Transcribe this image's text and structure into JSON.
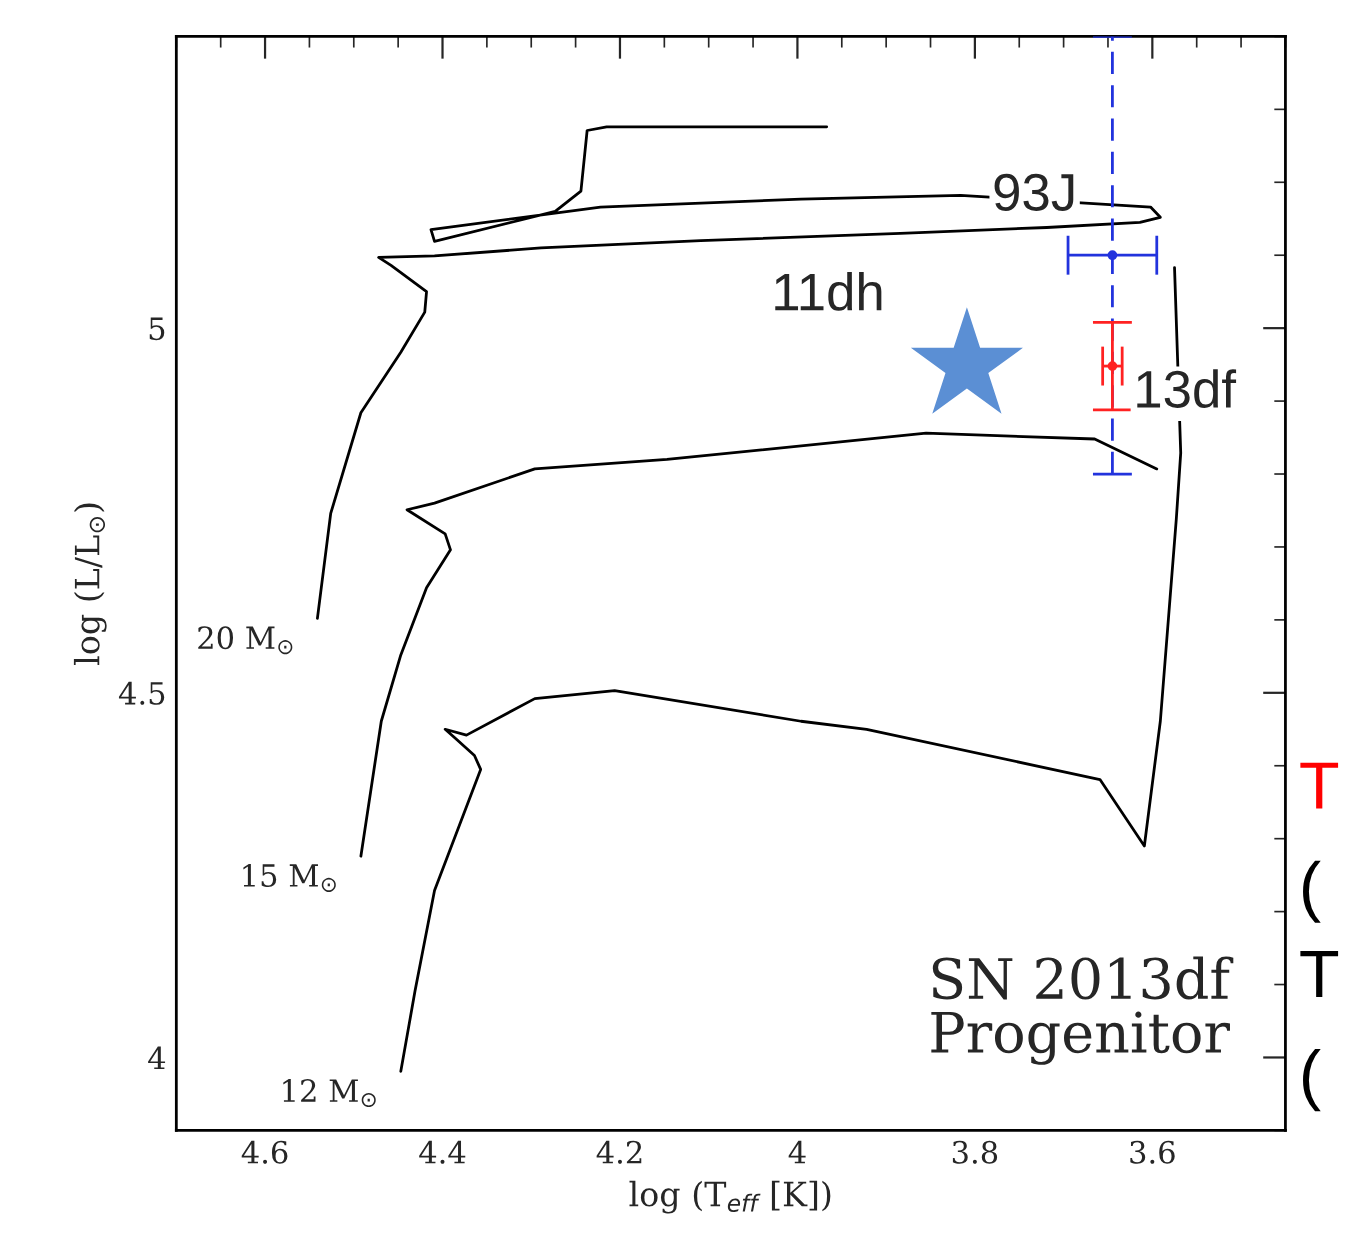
{
  "chart_data": {
    "type": "line",
    "xlabel": "log (T$_{eff}$ [K])",
    "ylabel": "log (L/L$_{⊙}$)",
    "xlim": [
      4.7,
      3.45
    ],
    "xticks": [
      4.6,
      4.4,
      4.2,
      4,
      3.8,
      3.6
    ],
    "ylim": [
      3.9,
      5.4
    ],
    "yticks": [
      4,
      4.5,
      5
    ],
    "grid": false,
    "legend": false,
    "series": [
      {
        "name": "20 M$_{⊙}$",
        "color": "#000000",
        "marker": "none",
        "x": [
          4.541,
          4.526,
          4.492,
          4.447,
          4.42,
          4.418,
          4.458,
          4.472,
          4.409,
          4.289,
          4.109,
          3.884,
          3.719,
          3.614,
          3.591,
          3.602,
          3.816,
          3.996,
          4.222,
          4.413,
          4.409,
          4.273,
          4.244,
          4.237,
          4.215,
          3.967
        ],
        "values": [
          4.602,
          4.746,
          4.884,
          4.967,
          5.022,
          5.05,
          5.086,
          5.097,
          5.099,
          5.11,
          5.12,
          5.13,
          5.138,
          5.145,
          5.152,
          5.166,
          5.182,
          5.177,
          5.166,
          5.135,
          5.119,
          5.16,
          5.188,
          5.271,
          5.276,
          5.276
        ]
      },
      {
        "name": "15 M$_{⊙}$",
        "color": "#000000",
        "marker": "none",
        "x": [
          4.492,
          4.469,
          4.447,
          4.418,
          4.391,
          4.397,
          4.44,
          4.409,
          4.296,
          4.147,
          3.855,
          3.665,
          3.595
        ],
        "values": [
          4.276,
          4.461,
          4.552,
          4.644,
          4.696,
          4.718,
          4.751,
          4.76,
          4.807,
          4.82,
          4.856,
          4.848,
          4.807
        ]
      },
      {
        "name": "12 M$_{⊙}$",
        "color": "#000000",
        "marker": "none",
        "x": [
          4.447,
          4.431,
          4.409,
          4.357,
          4.364,
          4.384,
          4.397,
          4.373,
          4.296,
          4.206,
          3.996,
          3.922,
          3.659,
          3.609,
          3.591,
          3.573,
          3.568,
          3.575
        ],
        "values": [
          3.981,
          4.091,
          4.229,
          4.395,
          4.414,
          4.436,
          4.45,
          4.442,
          4.492,
          4.503,
          4.461,
          4.45,
          4.381,
          4.29,
          4.461,
          4.738,
          4.829,
          5.083
        ]
      },
      {
        "name": "93J",
        "color": "#2233dd",
        "type": "scatter",
        "line_style": "dashed",
        "x": [
          3.645
        ],
        "values": [
          5.1
        ],
        "errors": [
          0.3
        ],
        "xerrors": [
          0.05
        ]
      },
      {
        "name": "13df",
        "color": "#ff2222",
        "type": "scatter",
        "x": [
          3.645
        ],
        "values": [
          4.948
        ],
        "errors": [
          0.06
        ],
        "xerrors": [
          0.011
        ]
      },
      {
        "name": "11dh",
        "color": "#5b8fd4",
        "type": "scatter",
        "marker": "star",
        "x": [
          3.809
        ],
        "values": [
          4.948
        ]
      }
    ],
    "annotations": [
      "SN 2013df\nProgenitor",
      "T",
      "(",
      "T",
      "("
    ]
  }
}
